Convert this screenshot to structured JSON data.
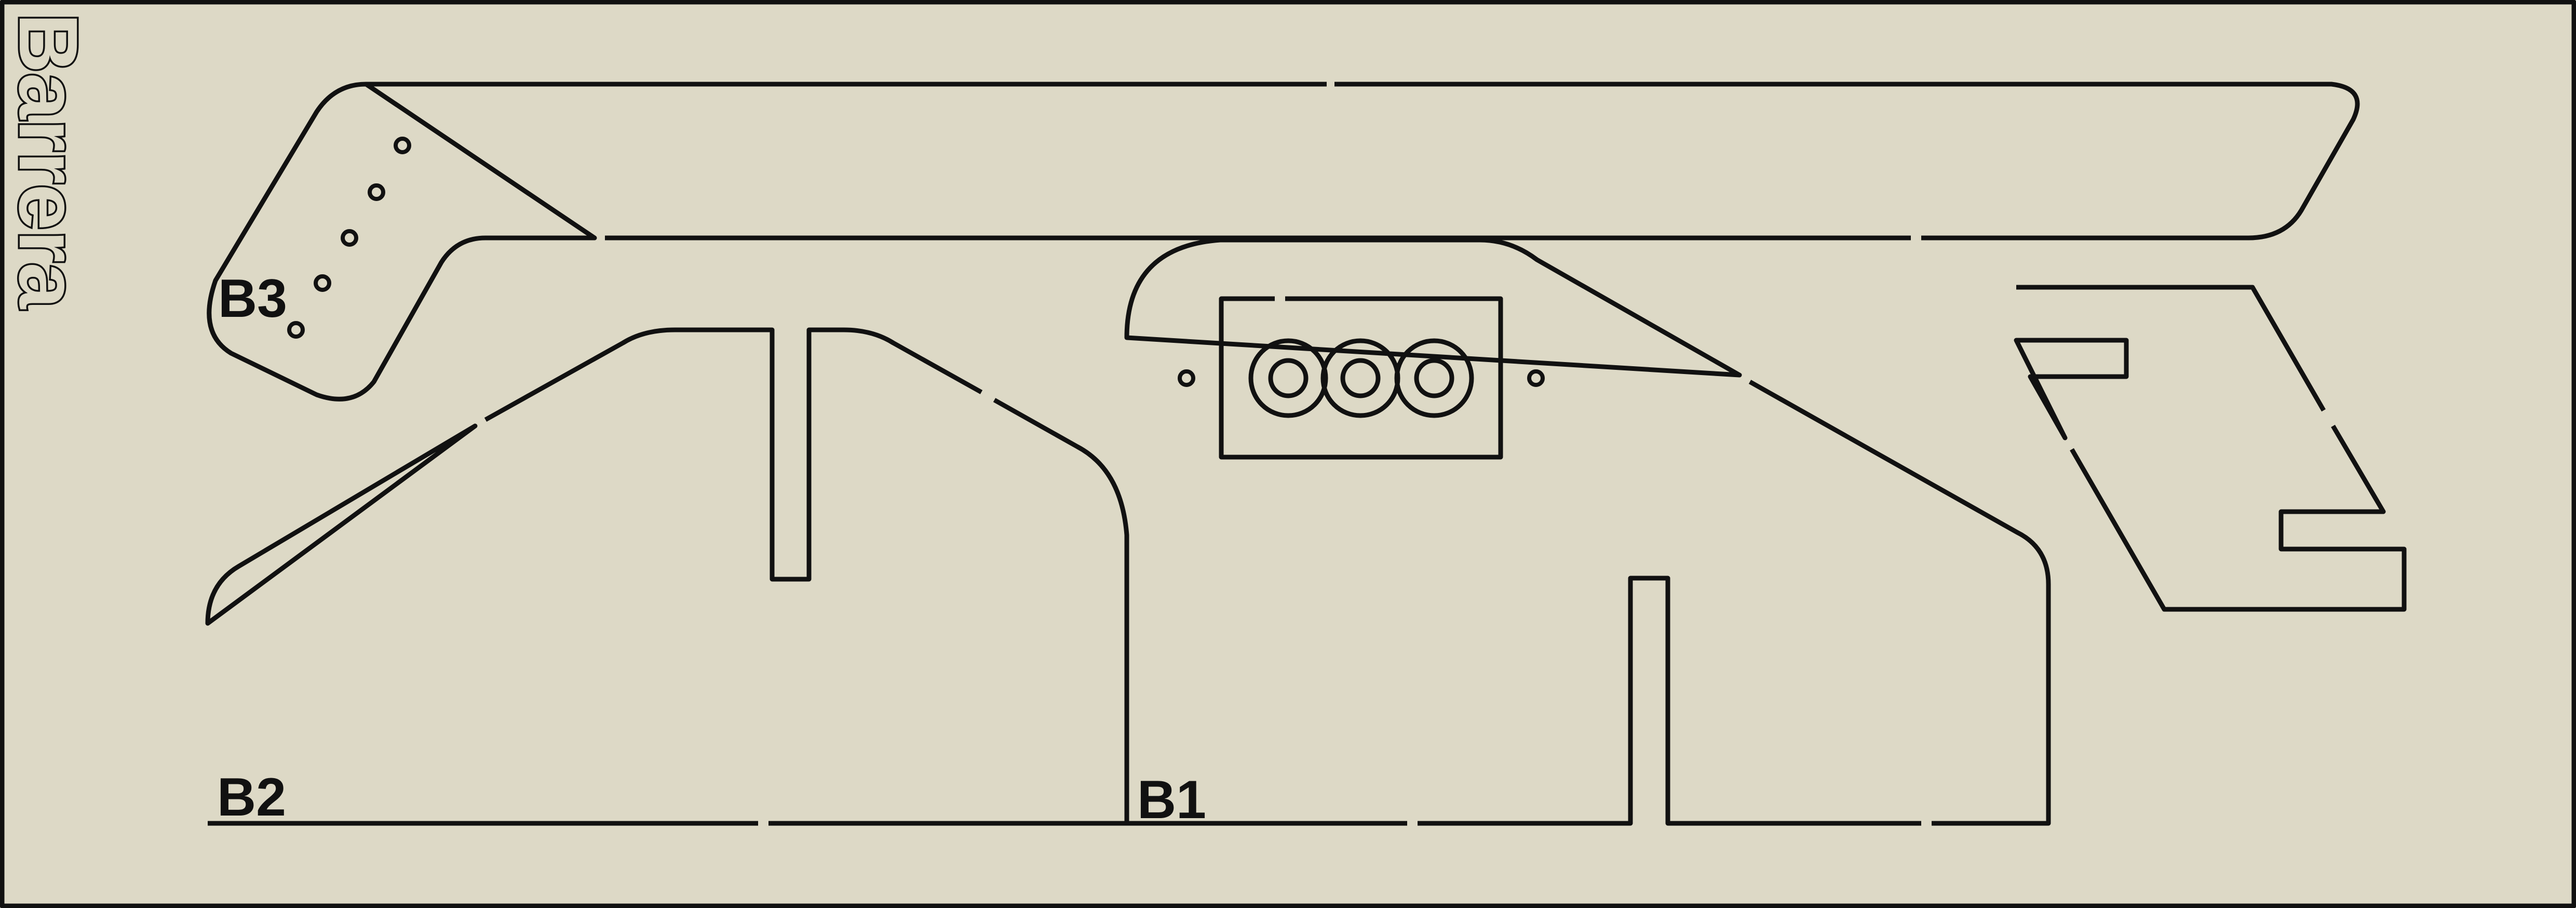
{
  "title": "Barrera",
  "parts": [
    {
      "id": "b1",
      "label": "B1"
    },
    {
      "id": "b2",
      "label": "B2"
    },
    {
      "id": "b3",
      "label": "B3"
    }
  ],
  "colors": {
    "background": "#ddd9c6",
    "line": "#111111"
  }
}
